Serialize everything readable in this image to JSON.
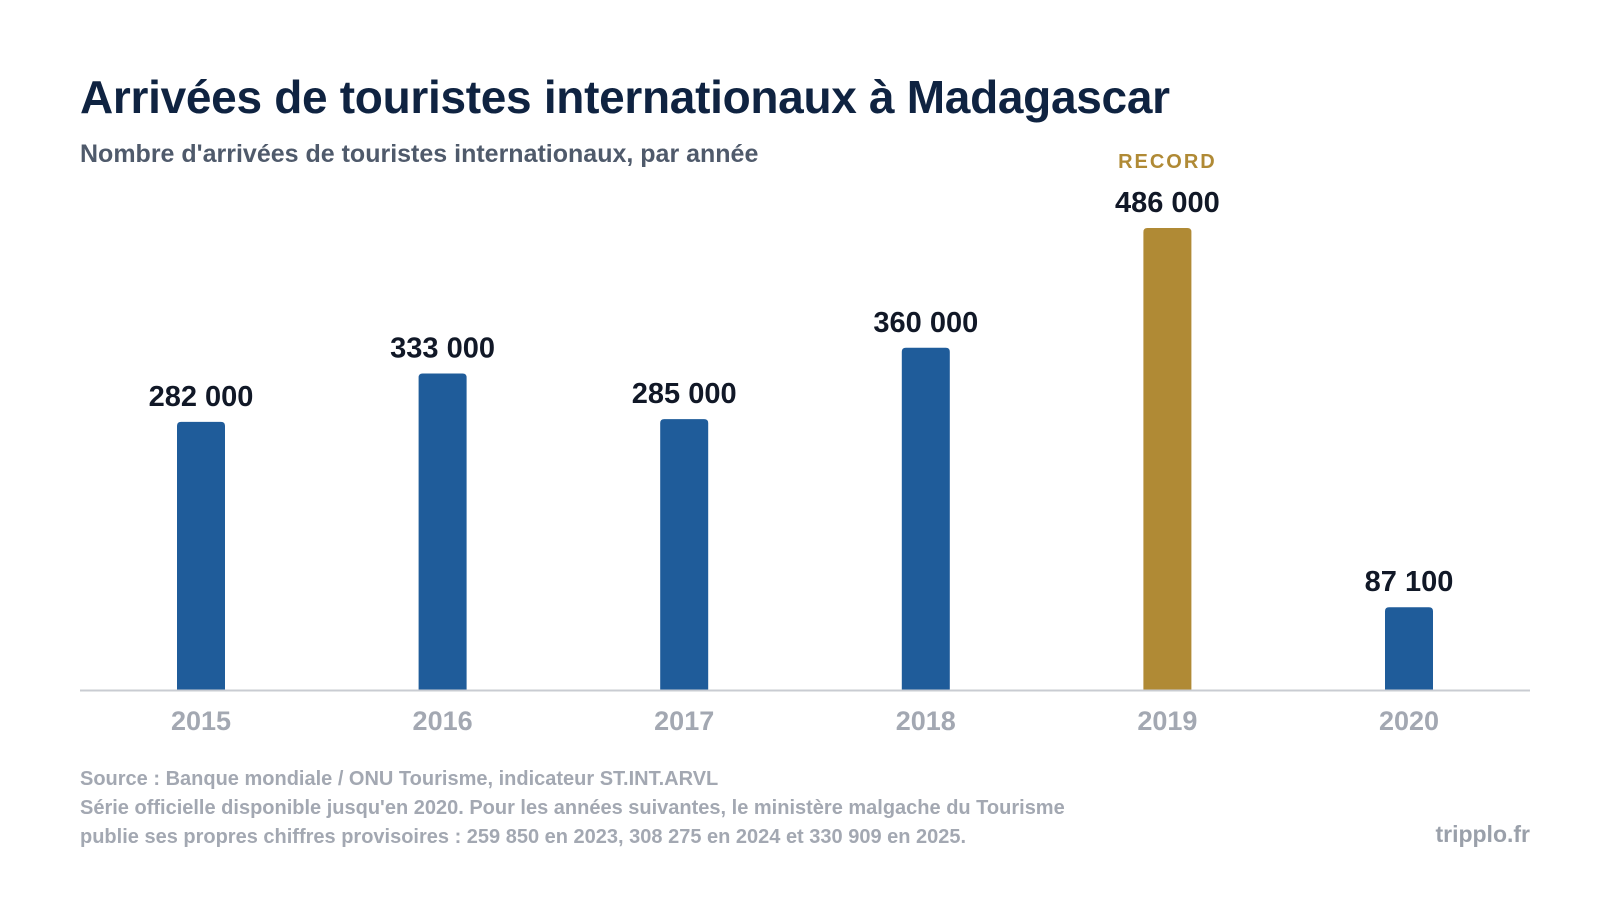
{
  "header": {
    "title": "Arrivées de touristes internationaux à Madagascar",
    "subtitle": "Nombre d'arrivées de touristes internationaux, par année"
  },
  "chart_data": {
    "type": "bar",
    "title": "Arrivées de touristes internationaux à Madagascar",
    "subtitle": "Nombre d'arrivées de touristes internationaux, par année",
    "xlabel": "",
    "ylabel": "",
    "categories": [
      "2015",
      "2016",
      "2017",
      "2018",
      "2019",
      "2020"
    ],
    "values": [
      282000,
      333000,
      285000,
      360000,
      486000,
      87100
    ],
    "value_labels": [
      "282 000",
      "333 000",
      "285 000",
      "360 000",
      "486 000",
      "87 100"
    ],
    "highlight_index": 4,
    "highlight_label": "RECORD",
    "ylim": [
      0,
      486000
    ],
    "grid": false,
    "legend": "none",
    "colors": {
      "bar": "#1f5c9a",
      "highlight": "#b08a35",
      "value_label": "#111827",
      "tick_label": "#a3a8b2",
      "axis": "#c9ccd2"
    }
  },
  "footer": {
    "source": "Source : Banque mondiale / ONU Tourisme, indicateur ST.INT.ARVL",
    "note_line1": "Série officielle disponible jusqu'en 2020. Pour les années suivantes, le ministère malgache du Tourisme",
    "note_line2": "publie ses propres chiffres provisoires : 259 850 en 2023, 308 275 en 2024 et 330 909 en 2025.",
    "brand": "tripplo.fr"
  }
}
